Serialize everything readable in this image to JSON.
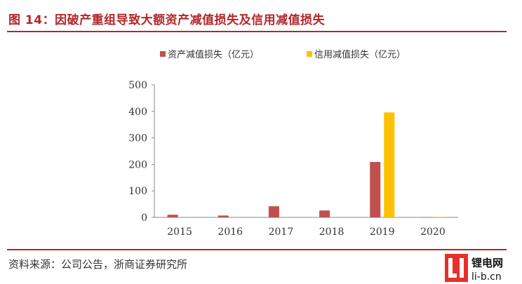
{
  "figure": {
    "title": "图 14：因破产重组导致大额资产减值损失及信用减值损失",
    "source": "资料来源：公司公告，浙商证券研究所"
  },
  "logo": {
    "line1": "锂电网",
    "line2": "li-b.cn"
  },
  "chart_data": {
    "type": "bar",
    "title": "",
    "xlabel": "",
    "ylabel": "",
    "categories": [
      "2015",
      "2016",
      "2017",
      "2018",
      "2019",
      "2020"
    ],
    "series": [
      {
        "name": "资产减值损失（亿元）",
        "color": "#c0504d",
        "values": [
          10,
          7,
          42,
          26,
          209,
          1
        ]
      },
      {
        "name": "信用减值损失（亿元）",
        "color": "#ffc000",
        "values": [
          0,
          0,
          0,
          0,
          396,
          2
        ]
      }
    ],
    "ylim": [
      0,
      500
    ],
    "yticks": [
      0,
      100,
      200,
      300,
      400,
      500
    ],
    "grid": false,
    "legend_position": "top"
  }
}
